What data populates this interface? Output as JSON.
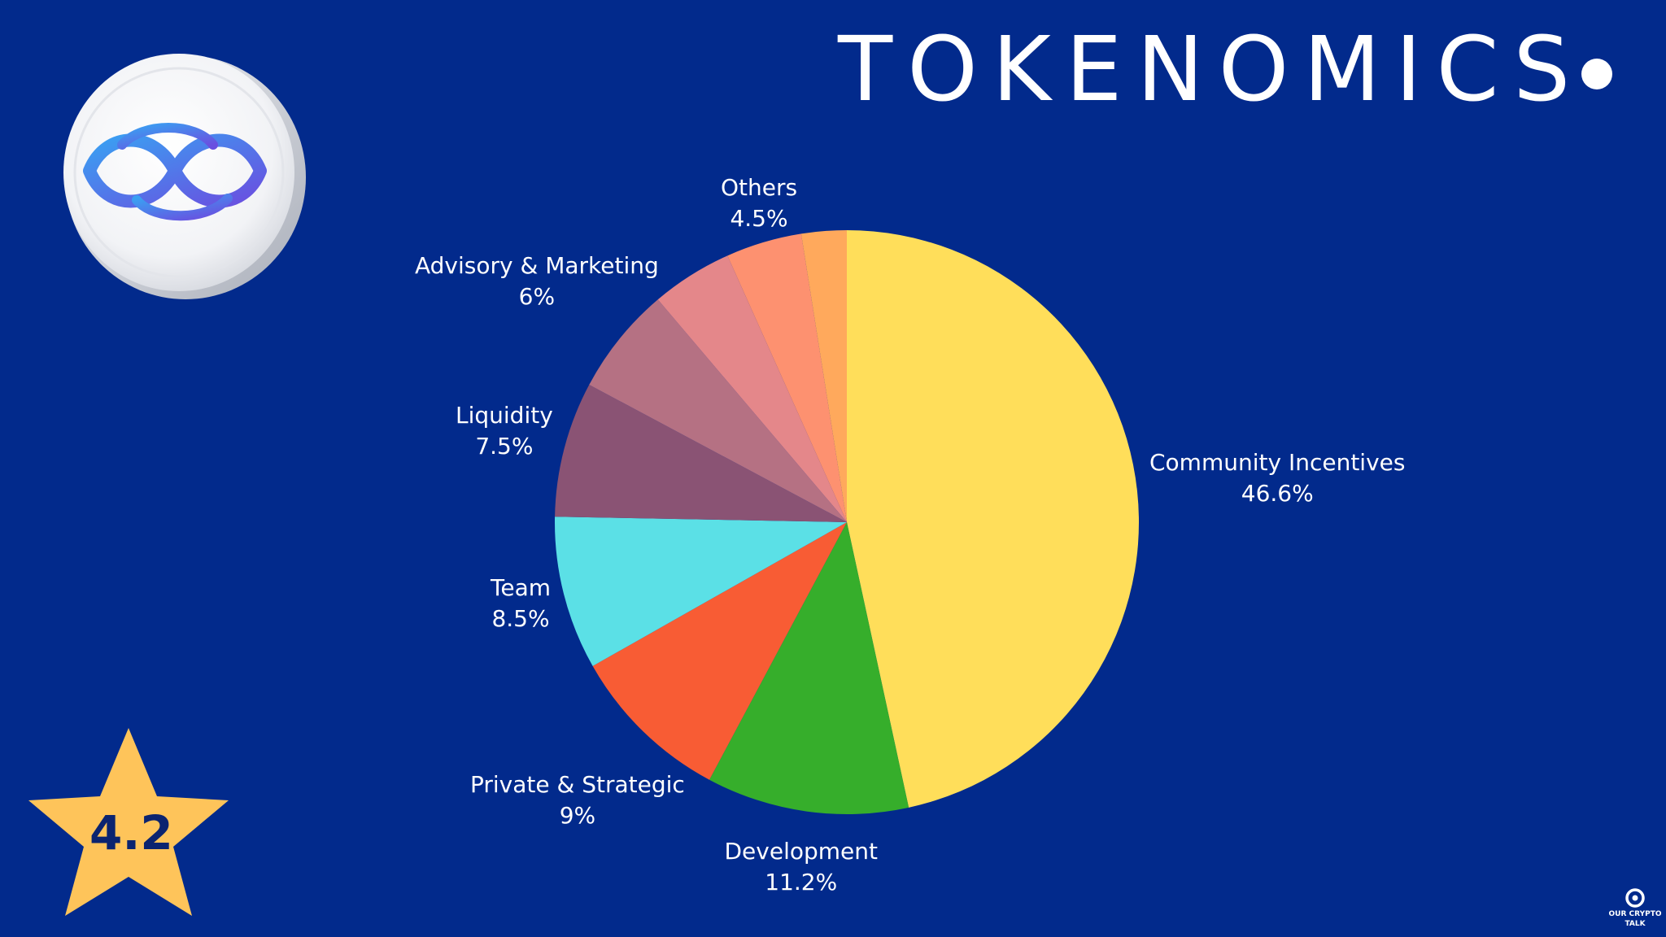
{
  "title": "TOKENOMICS",
  "rating": "4.2",
  "brand": "OUR CRYPTO TALK",
  "chart_data": {
    "type": "pie",
    "title": "TOKENOMICS",
    "slices": [
      {
        "label": "Community Incentives",
        "value": 46.6,
        "display": "46.6%",
        "color": "#ffde5a"
      },
      {
        "label": "Development",
        "value": 11.2,
        "display": "11.2%",
        "color": "#36ae2b"
      },
      {
        "label": "Private & Strategic",
        "value": 9,
        "display": "9%",
        "color": "#f85c34"
      },
      {
        "label": "Team",
        "value": 8.5,
        "display": "8.5%",
        "color": "#5be0e6"
      },
      {
        "label": "Liquidity",
        "value": 7.5,
        "display": "7.5%",
        "color": "#8a5374"
      },
      {
        "label": "Advisory & Marketing",
        "value": 6,
        "display": "6%",
        "color": "#b57183"
      },
      {
        "label": "Others",
        "value": 4.5,
        "display": "4.5%",
        "color": "#e4878a"
      },
      {
        "label": "",
        "value": 4.2,
        "display": "",
        "color": "#fd9170"
      },
      {
        "label": "",
        "value": 2.5,
        "display": "",
        "color": "#ffa95c"
      }
    ]
  },
  "colors": {
    "background": "#022a8c",
    "star": "#fec45a"
  }
}
